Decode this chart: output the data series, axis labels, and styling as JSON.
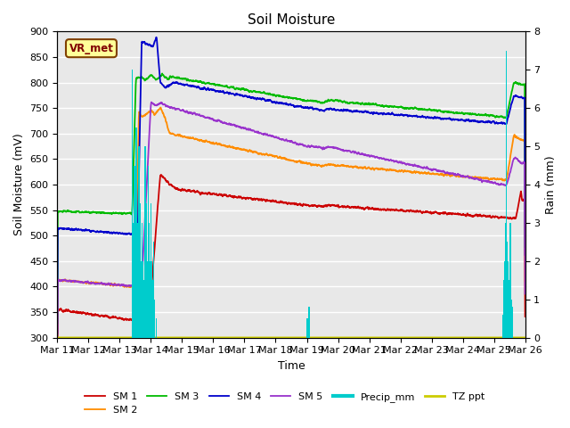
{
  "title": "Soil Moisture",
  "xlabel": "Time",
  "ylabel_left": "Soil Moisture (mV)",
  "ylabel_right": "Rain (mm)",
  "ylim_left": [
    300,
    900
  ],
  "ylim_right": [
    0.0,
    8.0
  ],
  "yticks_left": [
    300,
    350,
    400,
    450,
    500,
    550,
    600,
    650,
    700,
    750,
    800,
    850,
    900
  ],
  "yticks_right": [
    0.0,
    1.0,
    2.0,
    3.0,
    4.0,
    5.0,
    6.0,
    7.0,
    8.0
  ],
  "n_days": 25,
  "xtick_labels": [
    "Mar 11",
    "Mar 12",
    "Mar 13",
    "Mar 14",
    "Mar 15",
    "Mar 16",
    "Mar 17",
    "Mar 18",
    "Mar 19",
    "Mar 20",
    "Mar 21",
    "Mar 22",
    "Mar 23",
    "Mar 24",
    "Mar 25",
    "Mar 26"
  ],
  "annotation_text": "VR_met",
  "colors": {
    "SM1": "#cc0000",
    "SM2": "#ff8c00",
    "SM3": "#00bb00",
    "SM4": "#0000cc",
    "SM5": "#9933cc",
    "Precip": "#00cccc",
    "TZ": "#cccc00",
    "background": "#e8e8e8"
  }
}
